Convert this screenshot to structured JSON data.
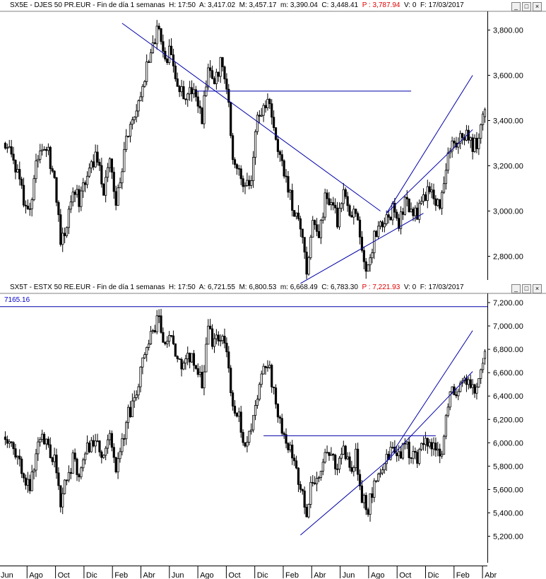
{
  "panels": [
    {
      "header": {
        "name": "SX5E - DJES 50 PR.EUR - Fin de día 1 semanas",
        "h": "H: 17:50",
        "a": "A: 3,417.02",
        "m1": "M: 3,457.17",
        "m2": "m: 3,390.04",
        "c": "C: 3,448.41",
        "p": "P : 3,787.94",
        "v": "V: 0",
        "f": "F: 17/03/2017"
      }
    },
    {
      "header": {
        "name": "SX5T - ESTX 50 RE.EUR - Fin de día 1 semanas",
        "h": "H: 17:50",
        "a": "A: 6,721.55",
        "m1": "M: 6,800.53",
        "m2": "m: 6,668.49",
        "c": "C: 6,783.30",
        "p": "P : 7,221.93",
        "v": "V: 0",
        "f": "F: 17/03/2017"
      },
      "ref_label": "7165.16"
    }
  ],
  "window_buttons": [
    "_",
    "□",
    "×"
  ],
  "colors": {
    "candle": "#000000",
    "trendline": "#0000aa",
    "axis": "#000000",
    "price_text": "#e00000",
    "ref_text": "#0000cc"
  },
  "chart_data": [
    {
      "type": "candlestick",
      "title": "SX5E - DJES 50 PR.EUR - Fin de día 1 semanas",
      "ylim": [
        2660,
        3830
      ],
      "y_ticks": [
        "3,800.00",
        "3,600.00",
        "3,400.00",
        "3,200.00",
        "3,000.00",
        "2,800.00"
      ],
      "x_ticks": [
        "Jun",
        "Ago",
        "Oct",
        "Dic",
        "Feb",
        "Abr",
        "Jun",
        "Ago",
        "Oct",
        "Dic",
        "Feb",
        "Abr",
        "Jun",
        "Ago",
        "Oct",
        "Dic",
        "Feb",
        "Abr"
      ],
      "close_path": [
        [
          0,
          3300
        ],
        [
          3,
          3250
        ],
        [
          6,
          3150
        ],
        [
          9,
          3050
        ],
        [
          12,
          3000
        ],
        [
          15,
          3200
        ],
        [
          18,
          3300
        ],
        [
          21,
          3250
        ],
        [
          24,
          3150
        ],
        [
          27,
          2850
        ],
        [
          30,
          2950
        ],
        [
          33,
          3100
        ],
        [
          36,
          3050
        ],
        [
          39,
          3150
        ],
        [
          42,
          3200
        ],
        [
          45,
          3250
        ],
        [
          48,
          3100
        ],
        [
          51,
          3250
        ],
        [
          54,
          3050
        ],
        [
          57,
          3200
        ],
        [
          60,
          3350
        ],
        [
          63,
          3400
        ],
        [
          66,
          3500
        ],
        [
          69,
          3650
        ],
        [
          72,
          3750
        ],
        [
          75,
          3800
        ],
        [
          78,
          3650
        ],
        [
          81,
          3720
        ],
        [
          84,
          3550
        ],
        [
          87,
          3500
        ],
        [
          90,
          3550
        ],
        [
          93,
          3500
        ],
        [
          96,
          3400
        ],
        [
          99,
          3650
        ],
        [
          102,
          3550
        ],
        [
          105,
          3650
        ],
        [
          108,
          3550
        ],
        [
          111,
          3250
        ],
        [
          114,
          3200
        ],
        [
          117,
          3100
        ],
        [
          120,
          3150
        ],
        [
          123,
          3400
        ],
        [
          126,
          3450
        ],
        [
          129,
          3500
        ],
        [
          132,
          3300
        ],
        [
          135,
          3200
        ],
        [
          138,
          3100
        ],
        [
          141,
          3000
        ],
        [
          144,
          2900
        ],
        [
          147,
          2750
        ],
        [
          150,
          2950
        ],
        [
          153,
          2900
        ],
        [
          156,
          3050
        ],
        [
          159,
          3050
        ],
        [
          162,
          2950
        ],
        [
          165,
          3100
        ],
        [
          168,
          2950
        ],
        [
          171,
          3000
        ],
        [
          174,
          2800
        ],
        [
          177,
          2750
        ],
        [
          180,
          2900
        ],
        [
          183,
          2950
        ],
        [
          186,
          2950
        ],
        [
          189,
          3000
        ],
        [
          192,
          2950
        ],
        [
          195,
          3050
        ],
        [
          198,
          3000
        ],
        [
          201,
          2980
        ],
        [
          204,
          3050
        ],
        [
          207,
          3100
        ],
        [
          210,
          3000
        ],
        [
          213,
          3050
        ],
        [
          216,
          3250
        ],
        [
          219,
          3300
        ],
        [
          222,
          3320
        ],
        [
          225,
          3350
        ],
        [
          228,
          3280
        ],
        [
          231,
          3320
        ],
        [
          234,
          3450
        ]
      ],
      "trendlines": [
        {
          "x": [
            57,
            183
          ],
          "y": [
            3830,
            3000
          ]
        },
        {
          "x": [
            93,
            198
          ],
          "y": [
            3530,
            3530
          ]
        },
        {
          "x": [
            144,
            204
          ],
          "y": [
            2680,
            2990
          ]
        },
        {
          "x": [
            186,
            228
          ],
          "y": [
            2990,
            3600
          ]
        },
        {
          "x": [
            186,
            228
          ],
          "y": [
            2990,
            3360
          ]
        }
      ],
      "last": {
        "open": 3417.02,
        "high": 3457.17,
        "low": 3390.04,
        "close": 3448.41
      }
    },
    {
      "type": "candlestick",
      "title": "SX5T - ESTX 50 RE.EUR - Fin de día 1 semanas",
      "ylim": [
        5050,
        7220
      ],
      "y_ticks": [
        "7,200.00",
        "7,000.00",
        "6,800.00",
        "6,600.00",
        "6,400.00",
        "6,200.00",
        "6,000.00",
        "5,800.00",
        "5,600.00",
        "5,400.00",
        "5,200.00"
      ],
      "x_ticks": [
        "Jun",
        "Ago",
        "Oct",
        "Dic",
        "Feb",
        "Abr",
        "Jun",
        "Ago",
        "Oct",
        "Dic",
        "Feb",
        "Abr",
        "Jun",
        "Ago",
        "Oct",
        "Dic",
        "Feb",
        "Abr"
      ],
      "close_path": [
        [
          0,
          6050
        ],
        [
          3,
          5950
        ],
        [
          6,
          5850
        ],
        [
          9,
          5700
        ],
        [
          12,
          5600
        ],
        [
          15,
          5900
        ],
        [
          18,
          6050
        ],
        [
          21,
          5950
        ],
        [
          24,
          5850
        ],
        [
          27,
          5450
        ],
        [
          30,
          5700
        ],
        [
          33,
          5850
        ],
        [
          36,
          5750
        ],
        [
          39,
          5900
        ],
        [
          42,
          6000
        ],
        [
          45,
          6050
        ],
        [
          48,
          5850
        ],
        [
          51,
          6050
        ],
        [
          54,
          5750
        ],
        [
          57,
          6000
        ],
        [
          60,
          6250
        ],
        [
          63,
          6350
        ],
        [
          66,
          6600
        ],
        [
          69,
          6800
        ],
        [
          72,
          6950
        ],
        [
          75,
          7100
        ],
        [
          78,
          6800
        ],
        [
          81,
          6950
        ],
        [
          84,
          6700
        ],
        [
          87,
          6650
        ],
        [
          90,
          6750
        ],
        [
          93,
          6700
        ],
        [
          96,
          6500
        ],
        [
          99,
          6950
        ],
        [
          102,
          6850
        ],
        [
          105,
          6900
        ],
        [
          108,
          6750
        ],
        [
          111,
          6300
        ],
        [
          114,
          6200
        ],
        [
          117,
          6000
        ],
        [
          120,
          6100
        ],
        [
          123,
          6400
        ],
        [
          126,
          6600
        ],
        [
          129,
          6650
        ],
        [
          132,
          6300
        ],
        [
          135,
          6100
        ],
        [
          138,
          6000
        ],
        [
          141,
          5800
        ],
        [
          144,
          5650
        ],
        [
          147,
          5400
        ],
        [
          150,
          5700
        ],
        [
          153,
          5650
        ],
        [
          156,
          5900
        ],
        [
          159,
          5900
        ],
        [
          162,
          5750
        ],
        [
          165,
          5950
        ],
        [
          168,
          5750
        ],
        [
          171,
          5900
        ],
        [
          174,
          5550
        ],
        [
          177,
          5450
        ],
        [
          180,
          5650
        ],
        [
          183,
          5800
        ],
        [
          186,
          5850
        ],
        [
          189,
          5950
        ],
        [
          192,
          5900
        ],
        [
          195,
          5980
        ],
        [
          198,
          5900
        ],
        [
          201,
          5850
        ],
        [
          204,
          6000
        ],
        [
          207,
          6050
        ],
        [
          210,
          5900
        ],
        [
          213,
          5950
        ],
        [
          216,
          6350
        ],
        [
          219,
          6450
        ],
        [
          222,
          6500
        ],
        [
          225,
          6550
        ],
        [
          228,
          6450
        ],
        [
          231,
          6500
        ],
        [
          234,
          6750
        ]
      ],
      "trendlines": [
        {
          "x": [
            126,
            210
          ],
          "y": [
            6060,
            6060
          ]
        },
        {
          "x": [
            144,
            186
          ],
          "y": [
            5210,
            5840
          ]
        },
        {
          "x": [
            186,
            228
          ],
          "y": [
            5840,
            6960
          ]
        },
        {
          "x": [
            186,
            228
          ],
          "y": [
            5840,
            6610
          ]
        }
      ],
      "last": {
        "open": 6721.55,
        "high": 6800.53,
        "low": 6668.49,
        "close": 6783.3
      }
    }
  ]
}
